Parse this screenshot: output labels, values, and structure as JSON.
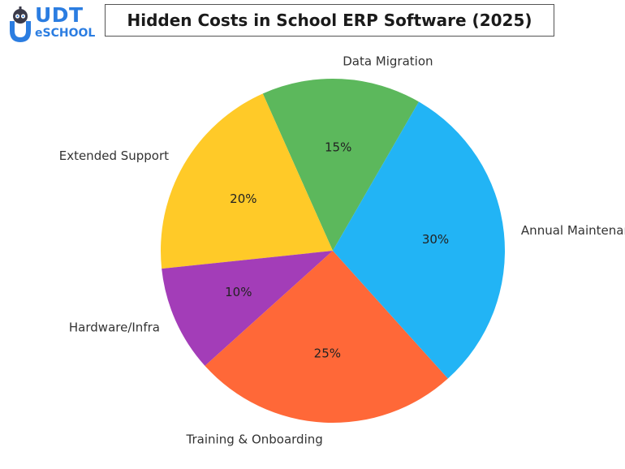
{
  "brand": {
    "name": "UDT",
    "sub": "eSCHOOL"
  },
  "chart_data": {
    "type": "pie",
    "title": "Hidden Costs in School ERP Software (2025)",
    "start_angle_deg": 60,
    "direction": "counterclockwise",
    "slices": [
      {
        "label": "Data Migration",
        "value": 15,
        "display": "15%",
        "color": "#5cb85c"
      },
      {
        "label": "Extended Support",
        "value": 20,
        "display": "20%",
        "color": "#ffca28"
      },
      {
        "label": "Hardware/Infra",
        "value": 10,
        "display": "10%",
        "color": "#a33db8"
      },
      {
        "label": "Training & Onboarding",
        "value": 25,
        "display": "25%",
        "color": "#ff6838"
      },
      {
        "label": "Annual Maintenance (AMC)",
        "value": 30,
        "display": "30%",
        "color": "#22b4f5"
      }
    ]
  }
}
